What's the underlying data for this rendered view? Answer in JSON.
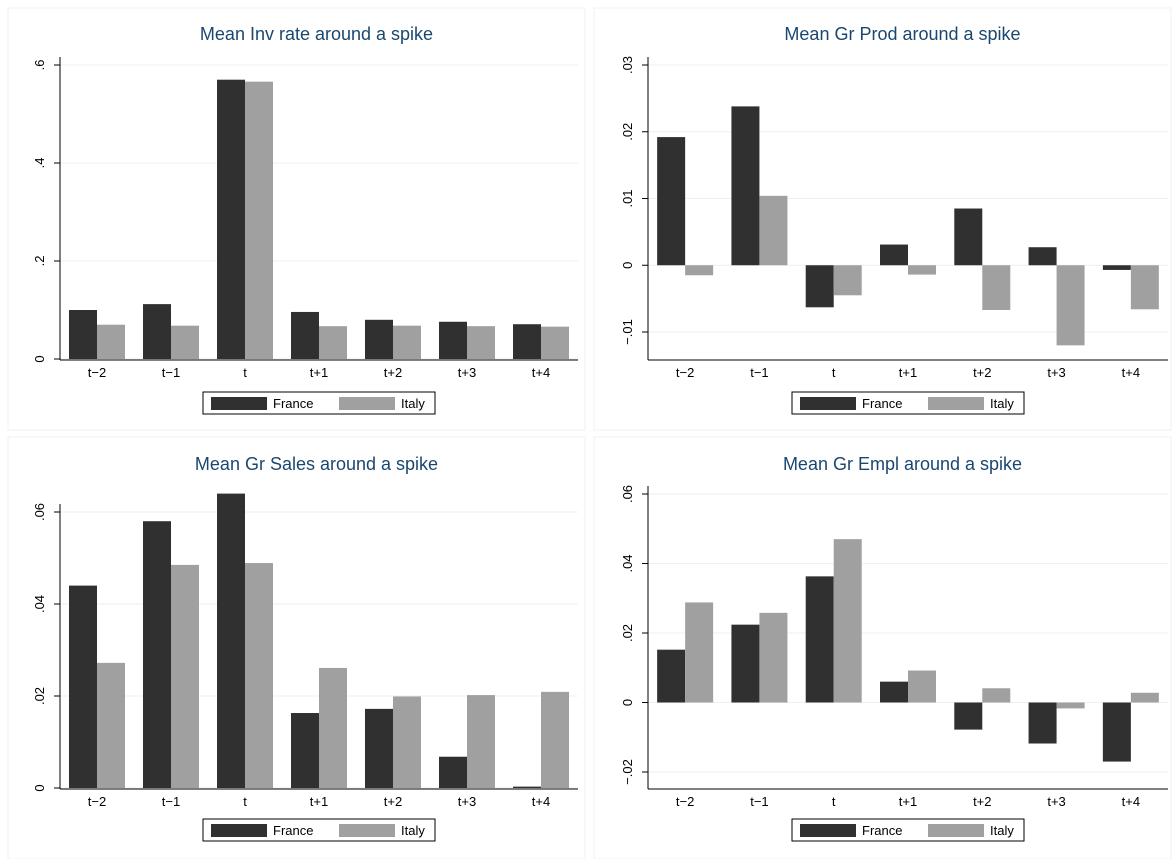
{
  "colors": {
    "France": "#303030",
    "Italy": "#a0a0a0"
  },
  "chart_data": [
    {
      "type": "bar",
      "title": "Mean Inv rate around a spike",
      "categories": [
        "t−2",
        "t−1",
        "t",
        "t+1",
        "t+2",
        "t+3",
        "t+4"
      ],
      "series": [
        {
          "name": "France",
          "values": [
            0.1,
            0.112,
            0.57,
            0.096,
            0.08,
            0.076,
            0.071
          ]
        },
        {
          "name": "Italy",
          "values": [
            0.07,
            0.068,
            0.566,
            0.067,
            0.068,
            0.067,
            0.066
          ]
        }
      ],
      "yticks": [
        0,
        0.2,
        0.4,
        0.6
      ],
      "ytick_labels": [
        "0",
        ".2",
        ".4",
        ".6"
      ],
      "ylim": [
        0,
        0.6
      ],
      "legend": "bottom"
    },
    {
      "type": "bar",
      "title": "Mean Gr Prod around a spike",
      "categories": [
        "t−2",
        "t−1",
        "t",
        "t+1",
        "t+2",
        "t+3",
        "t+4"
      ],
      "series": [
        {
          "name": "France",
          "values": [
            0.0192,
            0.0238,
            -0.0063,
            0.0031,
            0.0085,
            0.0027,
            -0.0007
          ]
        },
        {
          "name": "Italy",
          "values": [
            -0.0015,
            0.0104,
            -0.0045,
            -0.0014,
            -0.0067,
            -0.012,
            -0.0066
          ]
        }
      ],
      "yticks": [
        -0.01,
        0,
        0.01,
        0.02,
        0.03
      ],
      "ytick_labels": [
        "−.01",
        "0",
        ".01",
        ".02",
        ".03"
      ],
      "ylim": [
        -0.01,
        0.03
      ],
      "legend": "bottom"
    },
    {
      "type": "bar",
      "title": "Mean Gr Sales around a spike",
      "categories": [
        "t−2",
        "t−1",
        "t",
        "t+1",
        "t+2",
        "t+3",
        "t+4"
      ],
      "series": [
        {
          "name": "France",
          "values": [
            0.044,
            0.058,
            0.064,
            0.0163,
            0.0172,
            0.0068,
            0.0003
          ]
        },
        {
          "name": "Italy",
          "values": [
            0.0272,
            0.0485,
            0.0489,
            0.0261,
            0.0199,
            0.0202,
            0.0209
          ]
        }
      ],
      "yticks": [
        0,
        0.02,
        0.04,
        0.06
      ],
      "ytick_labels": [
        "0",
        ".02",
        ".04",
        ".06"
      ],
      "ylim": [
        0,
        0.06
      ],
      "legend": "bottom"
    },
    {
      "type": "bar",
      "title": "Mean Gr Empl around a spike",
      "categories": [
        "t−2",
        "t−1",
        "t",
        "t+1",
        "t+2",
        "t+3",
        "t+4"
      ],
      "series": [
        {
          "name": "France",
          "values": [
            0.0152,
            0.0224,
            0.0363,
            0.006,
            -0.0078,
            -0.0118,
            -0.017
          ]
        },
        {
          "name": "Italy",
          "values": [
            0.0288,
            0.0258,
            0.047,
            0.0092,
            0.0041,
            -0.0017,
            0.0028
          ]
        }
      ],
      "yticks": [
        -0.02,
        0,
        0.02,
        0.04,
        0.06
      ],
      "ytick_labels": [
        "−.02",
        "0",
        ".02",
        ".04",
        ".06"
      ],
      "ylim": [
        -0.02,
        0.06
      ],
      "legend": "bottom"
    }
  ]
}
